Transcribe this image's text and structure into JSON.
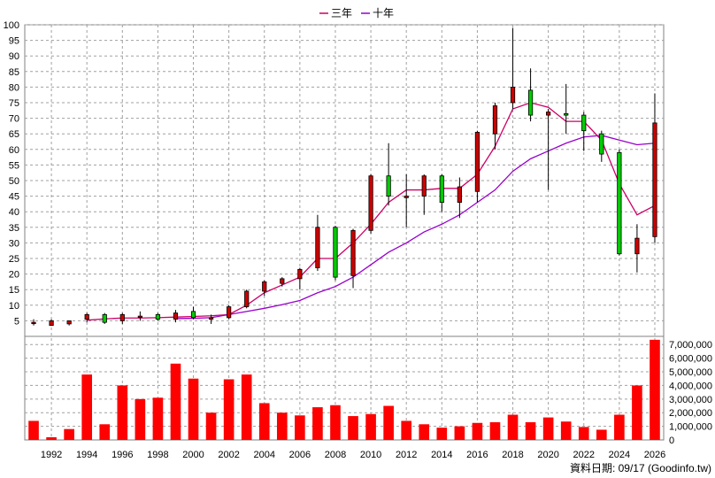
{
  "legend": {
    "items": [
      {
        "label": "三年",
        "color": "#cc0066"
      },
      {
        "label": "十年",
        "color": "#9900cc"
      }
    ]
  },
  "source_note": "資料日期: 09/17  (Goodinfo.tw)",
  "colors": {
    "candle_up": "#cc0000",
    "candle_down": "#00cc00",
    "wick": "#000000",
    "volume": "#ff0000",
    "grid": "#a0a0a0",
    "border": "#808080"
  },
  "chart_data": {
    "type": "candlestick-with-volume",
    "price_axis": {
      "ylim": [
        0,
        100
      ],
      "ticks": [
        5,
        10,
        15,
        20,
        25,
        30,
        35,
        40,
        45,
        50,
        55,
        60,
        65,
        70,
        75,
        80,
        85,
        90,
        95,
        100
      ]
    },
    "volume_axis": {
      "ylim": [
        0,
        7600000
      ],
      "ticks": [
        0,
        1000000,
        2000000,
        3000000,
        4000000,
        5000000,
        6000000,
        7000000
      ],
      "tick_labels": [
        "0",
        "1,000,000",
        "2,000,000",
        "3,000,000",
        "4,000,000",
        "5,000,000",
        "6,000,000",
        "7,000,000"
      ]
    },
    "x_ticks": [
      "1992",
      "1994",
      "1996",
      "1998",
      "2000",
      "2002",
      "2004",
      "2006",
      "2008",
      "2010",
      "2012",
      "2014",
      "2016",
      "2018",
      "2020",
      "2022",
      "2024",
      "2026"
    ],
    "years": [
      1991,
      1992,
      1993,
      1994,
      1995,
      1996,
      1997,
      1998,
      1999,
      2000,
      2001,
      2002,
      2003,
      2004,
      2005,
      2006,
      2007,
      2008,
      2009,
      2010,
      2011,
      2012,
      2013,
      2014,
      2015,
      2016,
      2017,
      2018,
      2019,
      2020,
      2021,
      2022,
      2023,
      2024,
      2025,
      2026
    ],
    "candles": [
      {
        "open": 4.5,
        "high": 5.5,
        "low": 3.5,
        "close": 4.5
      },
      {
        "open": 3.5,
        "high": 5.5,
        "low": 3.5,
        "close": 5
      },
      {
        "open": 4,
        "high": 5,
        "low": 3.5,
        "close": 5
      },
      {
        "open": 5.5,
        "high": 7.5,
        "low": 4.5,
        "close": 7
      },
      {
        "open": 7,
        "high": 7.5,
        "low": 4,
        "close": 4.5
      },
      {
        "open": 5,
        "high": 7.5,
        "low": 4,
        "close": 7
      },
      {
        "open": 6.5,
        "high": 8,
        "low": 5,
        "close": 6.5
      },
      {
        "open": 7,
        "high": 7.5,
        "low": 5,
        "close": 5.5
      },
      {
        "open": 5.5,
        "high": 8.5,
        "low": 4.5,
        "close": 7.5
      },
      {
        "open": 8,
        "high": 9.5,
        "low": 5.5,
        "close": 6
      },
      {
        "open": 5.5,
        "high": 7,
        "low": 4,
        "close": 6
      },
      {
        "open": 6,
        "high": 10,
        "low": 5.5,
        "close": 9.5
      },
      {
        "open": 9.5,
        "high": 15,
        "low": 9,
        "close": 14.5
      },
      {
        "open": 14.5,
        "high": 18,
        "low": 13,
        "close": 17.5
      },
      {
        "open": 17,
        "high": 19,
        "low": 16,
        "close": 18.5
      },
      {
        "open": 18.5,
        "high": 22,
        "low": 15,
        "close": 21.5
      },
      {
        "open": 22,
        "high": 39,
        "low": 21,
        "close": 35
      },
      {
        "open": 35,
        "high": 35.5,
        "low": 18,
        "close": 19
      },
      {
        "open": 19.5,
        "high": 34.5,
        "low": 15.5,
        "close": 34
      },
      {
        "open": 34,
        "high": 52,
        "low": 33,
        "close": 51.5
      },
      {
        "open": 51.5,
        "high": 62,
        "low": 42,
        "close": 45
      },
      {
        "open": 44.5,
        "high": 52,
        "low": 35,
        "close": 45
      },
      {
        "open": 45,
        "high": 52,
        "low": 39,
        "close": 51.5
      },
      {
        "open": 51.5,
        "high": 52,
        "low": 40,
        "close": 43
      },
      {
        "open": 43,
        "high": 51,
        "low": 38,
        "close": 48
      },
      {
        "open": 46.5,
        "high": 66,
        "low": 43,
        "close": 65.5
      },
      {
        "open": 65,
        "high": 75,
        "low": 60,
        "close": 74
      },
      {
        "open": 75,
        "high": 99,
        "low": 73,
        "close": 80
      },
      {
        "open": 79,
        "high": 86,
        "low": 69,
        "close": 71
      },
      {
        "open": 71,
        "high": 73,
        "low": 47,
        "close": 72
      },
      {
        "open": 71.5,
        "high": 81,
        "low": 65,
        "close": 71
      },
      {
        "open": 71,
        "high": 72,
        "low": 59.5,
        "close": 66
      },
      {
        "open": 65,
        "high": 66,
        "low": 56,
        "close": 58.5
      },
      {
        "open": 59,
        "high": 60,
        "low": 26,
        "close": 26.5
      },
      {
        "open": 26.5,
        "high": 36,
        "low": 20.5,
        "close": 31.5
      },
      {
        "open": 32,
        "high": 78,
        "low": 30,
        "close": 68.5
      }
    ],
    "series": [
      {
        "name": "三年",
        "start_year": 1994,
        "values": [
          5.2,
          5.6,
          5.9,
          5.9,
          6.0,
          6.2,
          6.4,
          6.6,
          7.0,
          10.0,
          14.0,
          16.5,
          19.0,
          25.0,
          25.0,
          30.0,
          36.0,
          43.0,
          47.0,
          47.0,
          47.5,
          47.5,
          52.0,
          61.0,
          73.0,
          75.0,
          73.5,
          69.0,
          69.0,
          63.0,
          49.0,
          39.0,
          42.0
        ]
      },
      {
        "name": "十年",
        "start_year": 1999,
        "values": [
          5.7,
          5.8,
          6.0,
          7.0,
          8.0,
          9.0,
          10.2,
          11.5,
          14.0,
          16.0,
          19.0,
          23.0,
          27.0,
          30.0,
          33.5,
          36.0,
          39.0,
          43.0,
          47.0,
          53.0,
          57.0,
          59.5,
          62.0,
          64.0,
          64.5,
          63.0,
          61.5,
          62.0
        ]
      }
    ],
    "volume": [
      1400000,
      200000,
      800000,
      4800000,
      1150000,
      4000000,
      3000000,
      3100000,
      5600000,
      4500000,
      2000000,
      4450000,
      4800000,
      2700000,
      2000000,
      1800000,
      2400000,
      2550000,
      1750000,
      1900000,
      2500000,
      1400000,
      1150000,
      900000,
      1000000,
      1250000,
      1300000,
      1850000,
      1300000,
      1650000,
      1350000,
      950000,
      750000,
      1850000,
      4000000,
      7350000
    ]
  }
}
